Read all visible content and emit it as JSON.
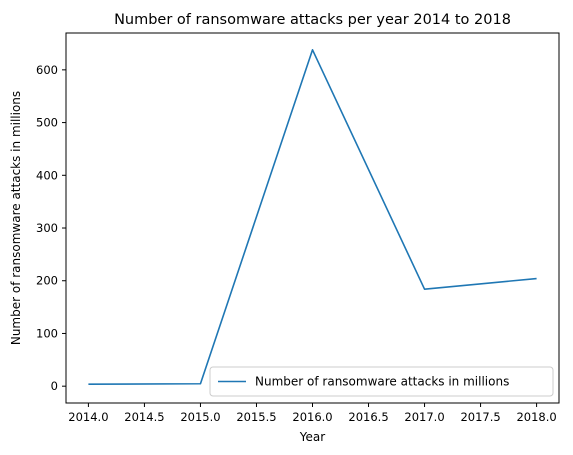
{
  "chart_data": {
    "type": "line",
    "title": "Number of ransomware attacks per year 2014 to 2018",
    "xlabel": "Year",
    "ylabel": "Number of ransomware attacks in millions",
    "x": [
      2014,
      2015,
      2016,
      2017,
      2018
    ],
    "series": [
      {
        "name": "Number of ransomware attacks in millions",
        "values": [
          3.8,
          4.6,
          638,
          184,
          204.2
        ],
        "color": "#1f77b4"
      }
    ],
    "xlim": [
      2013.8,
      2018.2
    ],
    "ylim": [
      -31.9,
      669.9
    ],
    "x_ticks": [
      "2014.0",
      "2014.5",
      "2015.0",
      "2015.5",
      "2016.0",
      "2016.5",
      "2017.0",
      "2017.5",
      "2018.0"
    ],
    "y_ticks": [
      "0",
      "100",
      "200",
      "300",
      "400",
      "500",
      "600"
    ],
    "grid": false,
    "legend": "lower-right"
  }
}
